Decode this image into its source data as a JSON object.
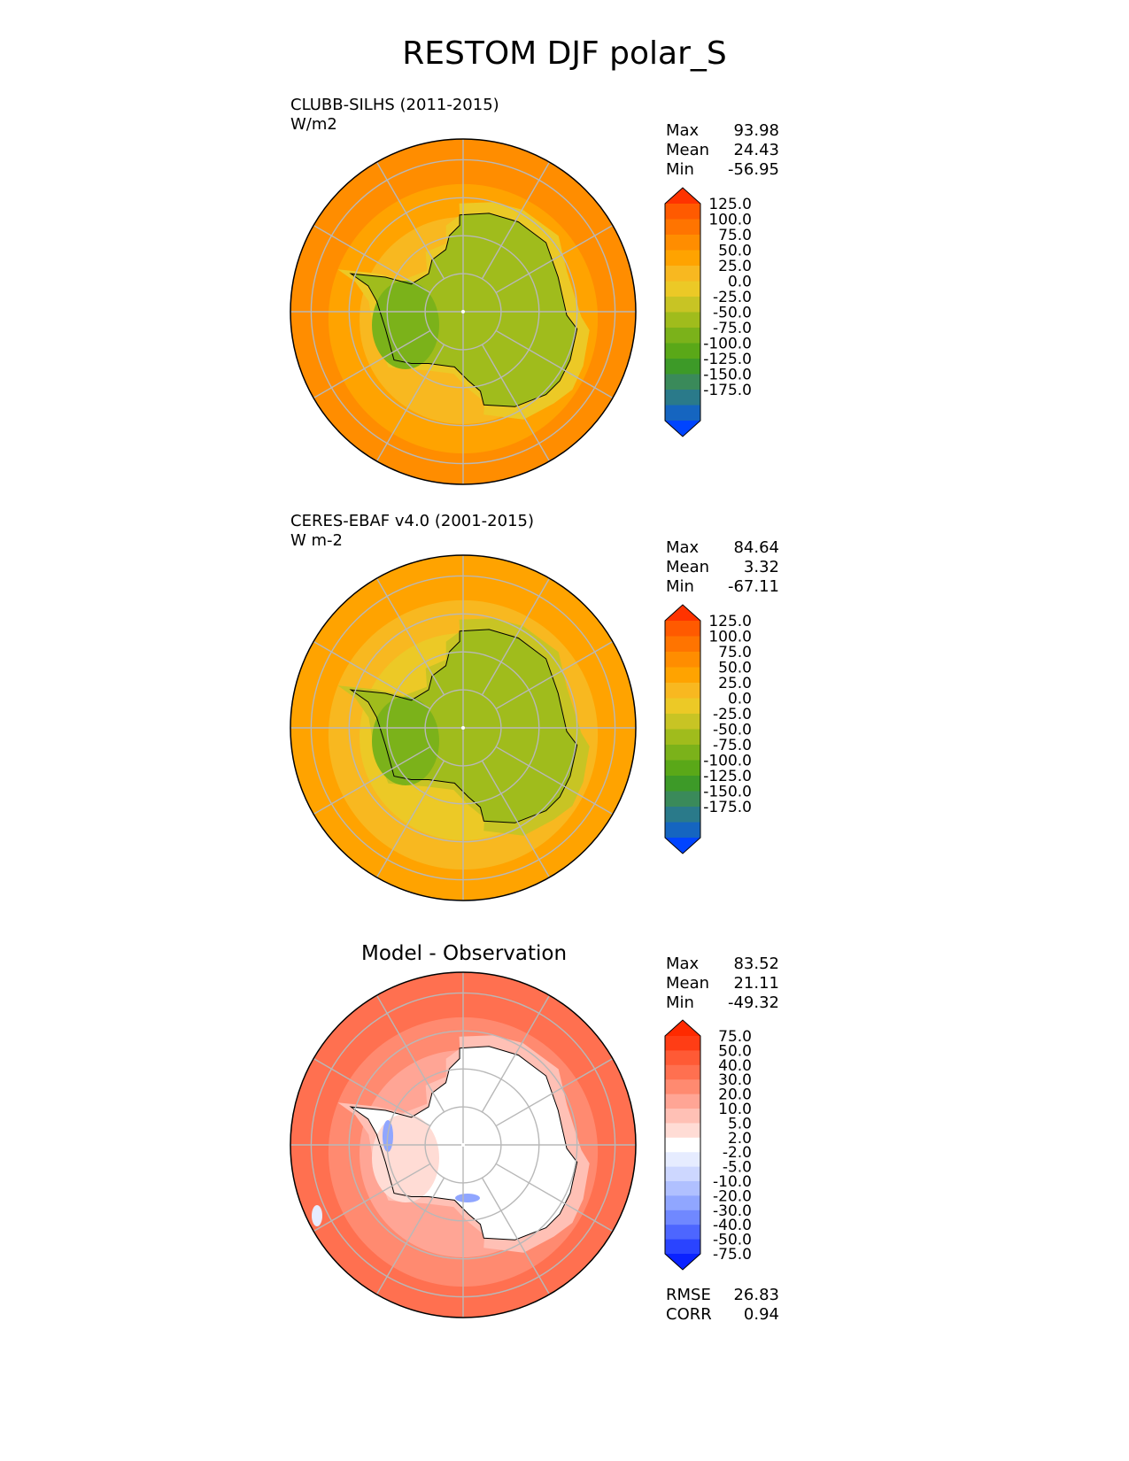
{
  "title": "RESTOM DJF polar_S",
  "panels": [
    {
      "id": "model",
      "name": "CLUBB-SILHS (2011-2015)",
      "units": "W/m2",
      "stats": {
        "max_label": "Max",
        "max": "93.98",
        "mean_label": "Mean",
        "mean": "24.43",
        "min_label": "Min",
        "min": "-56.95"
      },
      "colorbar": {
        "ticks": [
          "125.0",
          "100.0",
          "75.0",
          "50.0",
          "25.0",
          "0.0",
          "-25.0",
          "-50.0",
          "-75.0",
          "-100.0",
          "-125.0",
          "-150.0",
          "-175.0"
        ],
        "colors": [
          "#ff3300",
          "#ff5a00",
          "#ff7400",
          "#ff8d00",
          "#ffa300",
          "#f8b820",
          "#ecc926",
          "#c8c424",
          "#a0bc1c",
          "#7bb21a",
          "#5aa818",
          "#3d9a28",
          "#3a8a5a",
          "#2a7a8a",
          "#1565c0",
          "#0044ff"
        ]
      }
    },
    {
      "id": "obs",
      "name": "CERES-EBAF v4.0 (2001-2015)",
      "units": "W m-2",
      "stats": {
        "max_label": "Max",
        "max": "84.64",
        "mean_label": "Mean",
        "mean": "3.32",
        "min_label": "Min",
        "min": "-67.11"
      },
      "colorbar": {
        "ticks": [
          "125.0",
          "100.0",
          "75.0",
          "50.0",
          "25.0",
          "0.0",
          "-25.0",
          "-50.0",
          "-75.0",
          "-100.0",
          "-125.0",
          "-150.0",
          "-175.0"
        ],
        "colors": [
          "#ff3300",
          "#ff5a00",
          "#ff7400",
          "#ff8d00",
          "#ffa300",
          "#f8b820",
          "#ecc926",
          "#c8c424",
          "#a0bc1c",
          "#7bb21a",
          "#5aa818",
          "#3d9a28",
          "#3a8a5a",
          "#2a7a8a",
          "#1565c0",
          "#0044ff"
        ]
      }
    },
    {
      "id": "diff",
      "name": "Model - Observation",
      "stats": {
        "max_label": "Max",
        "max": "83.52",
        "mean_label": "Mean",
        "mean": "21.11",
        "min_label": "Min",
        "min": "-49.32"
      },
      "metrics": {
        "rmse_label": "RMSE",
        "rmse": "26.83",
        "corr_label": "CORR",
        "corr": "0.94"
      },
      "colorbar": {
        "ticks": [
          "75.0",
          "50.0",
          "40.0",
          "30.0",
          "20.0",
          "10.0",
          "5.0",
          "2.0",
          "-2.0",
          "-5.0",
          "-10.0",
          "-20.0",
          "-30.0",
          "-40.0",
          "-50.0",
          "-75.0"
        ],
        "colors": [
          "#ff2a00",
          "#ff3d15",
          "#ff5a35",
          "#ff7050",
          "#ff8a70",
          "#ffa595",
          "#ffc0b5",
          "#ffdcd5",
          "#ffffff",
          "#e6ecff",
          "#cdd7ff",
          "#b0c0ff",
          "#90a6ff",
          "#7088ff",
          "#4d66ff",
          "#2a44ff",
          "#0a22ff"
        ]
      }
    }
  ],
  "colors": {
    "model": {
      "ocean_far": "#ff8d00",
      "ocean_mid": "#ffa300",
      "ocean_near": "#f8b820",
      "ice": "#ecc926",
      "land": "#a0bc1c",
      "land_low": "#7bb21a"
    },
    "obs": {
      "ocean_far": "#ffa300",
      "ocean_mid": "#f8b820",
      "ocean_near": "#ecc926",
      "ice": "#c8c424",
      "land": "#a0bc1c",
      "land_low": "#7bb21a"
    },
    "diff": {
      "ocean_far": "#ff7050",
      "ocean_mid": "#ff8a70",
      "ocean_near": "#ffa595",
      "ice": "#ffc0b5",
      "land": "#ffffff",
      "land_low": "#ffdcd5",
      "neg": "#90a6ff"
    }
  }
}
